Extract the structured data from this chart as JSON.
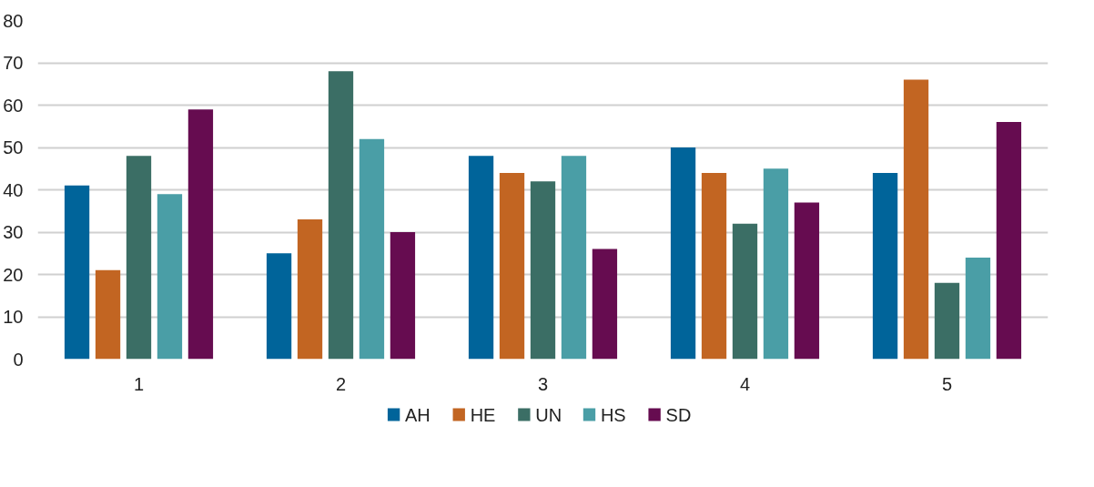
{
  "chart_data": {
    "type": "bar",
    "categories": [
      "1",
      "2",
      "3",
      "4",
      "5"
    ],
    "series": [
      {
        "name": "AH",
        "color": "#00649a",
        "values": [
          41,
          25,
          48,
          50,
          44
        ]
      },
      {
        "name": "HE",
        "color": "#c26522",
        "values": [
          21,
          33,
          44,
          44,
          66
        ]
      },
      {
        "name": "UN",
        "color": "#3b6e65",
        "values": [
          48,
          68,
          42,
          32,
          18
        ]
      },
      {
        "name": "HS",
        "color": "#4a9ea6",
        "values": [
          39,
          52,
          48,
          45,
          24
        ]
      },
      {
        "name": "SD",
        "color": "#660c50",
        "values": [
          59,
          30,
          26,
          37,
          56
        ]
      }
    ],
    "ylim": [
      0,
      80
    ],
    "yticks": [
      0,
      10,
      20,
      30,
      40,
      50,
      60,
      70,
      80
    ],
    "grid": "y",
    "legend": "bottom"
  }
}
